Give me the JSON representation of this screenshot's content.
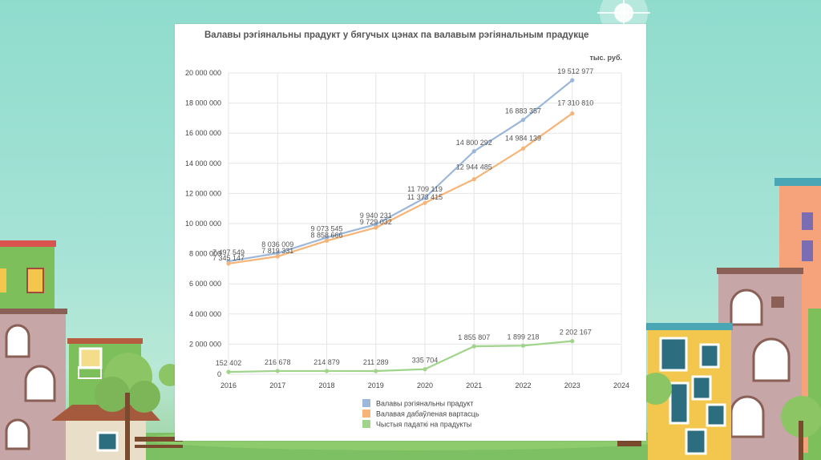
{
  "colors": {
    "series1": "#9bb7d9",
    "series2": "#f7b478",
    "series3": "#9fd48a",
    "sky": "#a6e3d6",
    "grid": "#e6e6e6"
  },
  "chart_data": {
    "type": "line",
    "title": "Валавы рэгіянальны прадукт у бягучых цэнах па валавым рэгіянальным прадукце",
    "unit": "тыс. руб.",
    "x": [
      2016,
      2017,
      2018,
      2019,
      2020,
      2021,
      2022,
      2023
    ],
    "xticks": [
      "2016",
      "2017",
      "2018",
      "2019",
      "2020",
      "2021",
      "2022",
      "2023",
      "2024"
    ],
    "xlim": [
      2016,
      2024
    ],
    "ylim": [
      0,
      20000000
    ],
    "yticks": [
      "0",
      "2 000 000",
      "4 000 000",
      "6 000 000",
      "8 000 000",
      "10 000 000",
      "12 000 000",
      "14 000 000",
      "16 000 000",
      "18 000 000",
      "20 000 000"
    ],
    "grid": true,
    "legend_position": "bottom",
    "series": [
      {
        "name": "Валавы рэгіянальны прадукт",
        "values": [
          7497549,
          8036009,
          9073545,
          9940231,
          11709119,
          14800292,
          16883357,
          19512977
        ],
        "labels": [
          "7 497 549",
          "8 036 009",
          "9 073 545",
          "9 940 231",
          "11 709 119",
          "14 800 292",
          "16 883 357",
          "19 512 977"
        ]
      },
      {
        "name": "Валавая дабаўленая вартасць",
        "values": [
          7345147,
          7819331,
          8858666,
          9729032,
          11373415,
          12944485,
          14984139,
          17310810
        ],
        "labels": [
          "7 345 147",
          "7 819 331",
          "8 858 666",
          "9 729 032",
          "11 373 415",
          "12 944 485",
          "14 984 139",
          "17 310 810"
        ]
      },
      {
        "name": "Чыстыя падаткі на прадукты",
        "values": [
          152402,
          216678,
          214879,
          211289,
          335704,
          1855807,
          1899218,
          2202167
        ],
        "labels": [
          "152 402",
          "216 678",
          "214 879",
          "211 289",
          "335 704",
          "1 855 807",
          "1 899 218",
          "2 202 167"
        ]
      }
    ]
  }
}
